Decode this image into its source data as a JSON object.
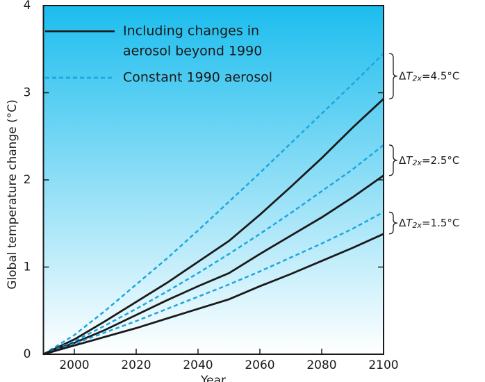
{
  "chart_data": {
    "type": "line",
    "xlabel": "Year",
    "ylabel": "Global temperature change (°C)",
    "x": [
      1990,
      2000,
      2010,
      2020,
      2030,
      2040,
      2050,
      2060,
      2070,
      2080,
      2090,
      2100
    ],
    "series": [
      {
        "color": "#1aa7e0",
        "dashed": true,
        "values": [
          0,
          0.22,
          0.5,
          0.8,
          1.1,
          1.42,
          1.75,
          2.08,
          2.42,
          2.76,
          3.1,
          3.45
        ]
      },
      {
        "color": "#1a1a1a",
        "dashed": false,
        "values": [
          0,
          0.17,
          0.38,
          0.6,
          0.82,
          1.06,
          1.3,
          1.6,
          1.92,
          2.25,
          2.6,
          2.93
        ]
      },
      {
        "color": "#1aa7e0",
        "dashed": true,
        "values": [
          0,
          0.15,
          0.33,
          0.52,
          0.72,
          0.93,
          1.15,
          1.38,
          1.62,
          1.87,
          2.12,
          2.4
        ]
      },
      {
        "color": "#1a1a1a",
        "dashed": false,
        "values": [
          0,
          0.13,
          0.28,
          0.45,
          0.62,
          0.78,
          0.93,
          1.15,
          1.36,
          1.57,
          1.8,
          2.05
        ]
      },
      {
        "color": "#1aa7e0",
        "dashed": true,
        "values": [
          0,
          0.12,
          0.25,
          0.38,
          0.52,
          0.66,
          0.8,
          0.95,
          1.11,
          1.27,
          1.44,
          1.63
        ]
      },
      {
        "color": "#1a1a1a",
        "dashed": false,
        "values": [
          0,
          0.1,
          0.2,
          0.3,
          0.41,
          0.52,
          0.63,
          0.78,
          0.92,
          1.07,
          1.22,
          1.38
        ]
      }
    ],
    "legend": [
      {
        "color": "#1a1a1a",
        "dashed": false,
        "label_lines": [
          "Including changes in",
          "aerosol beyond 1990"
        ]
      },
      {
        "color": "#1aa7e0",
        "dashed": true,
        "label_lines": [
          "Constant 1990 aerosol"
        ]
      }
    ],
    "annotations": [
      {
        "delta": "Δ",
        "symbol": "T",
        "subscript": "2x",
        "text": "=4.5°C"
      },
      {
        "delta": "Δ",
        "symbol": "T",
        "subscript": "2x",
        "text": "=2.5°C"
      },
      {
        "delta": "Δ",
        "symbol": "T",
        "subscript": "2x",
        "text": "=1.5°C"
      }
    ],
    "xlim": [
      1990,
      2100
    ],
    "ylim": [
      0,
      4
    ],
    "xticks": [
      2000,
      2020,
      2040,
      2060,
      2080,
      2100
    ],
    "yticks": [
      0,
      1,
      2,
      3,
      4
    ],
    "background": [
      "#1cbdee",
      "#ffffff"
    ]
  }
}
